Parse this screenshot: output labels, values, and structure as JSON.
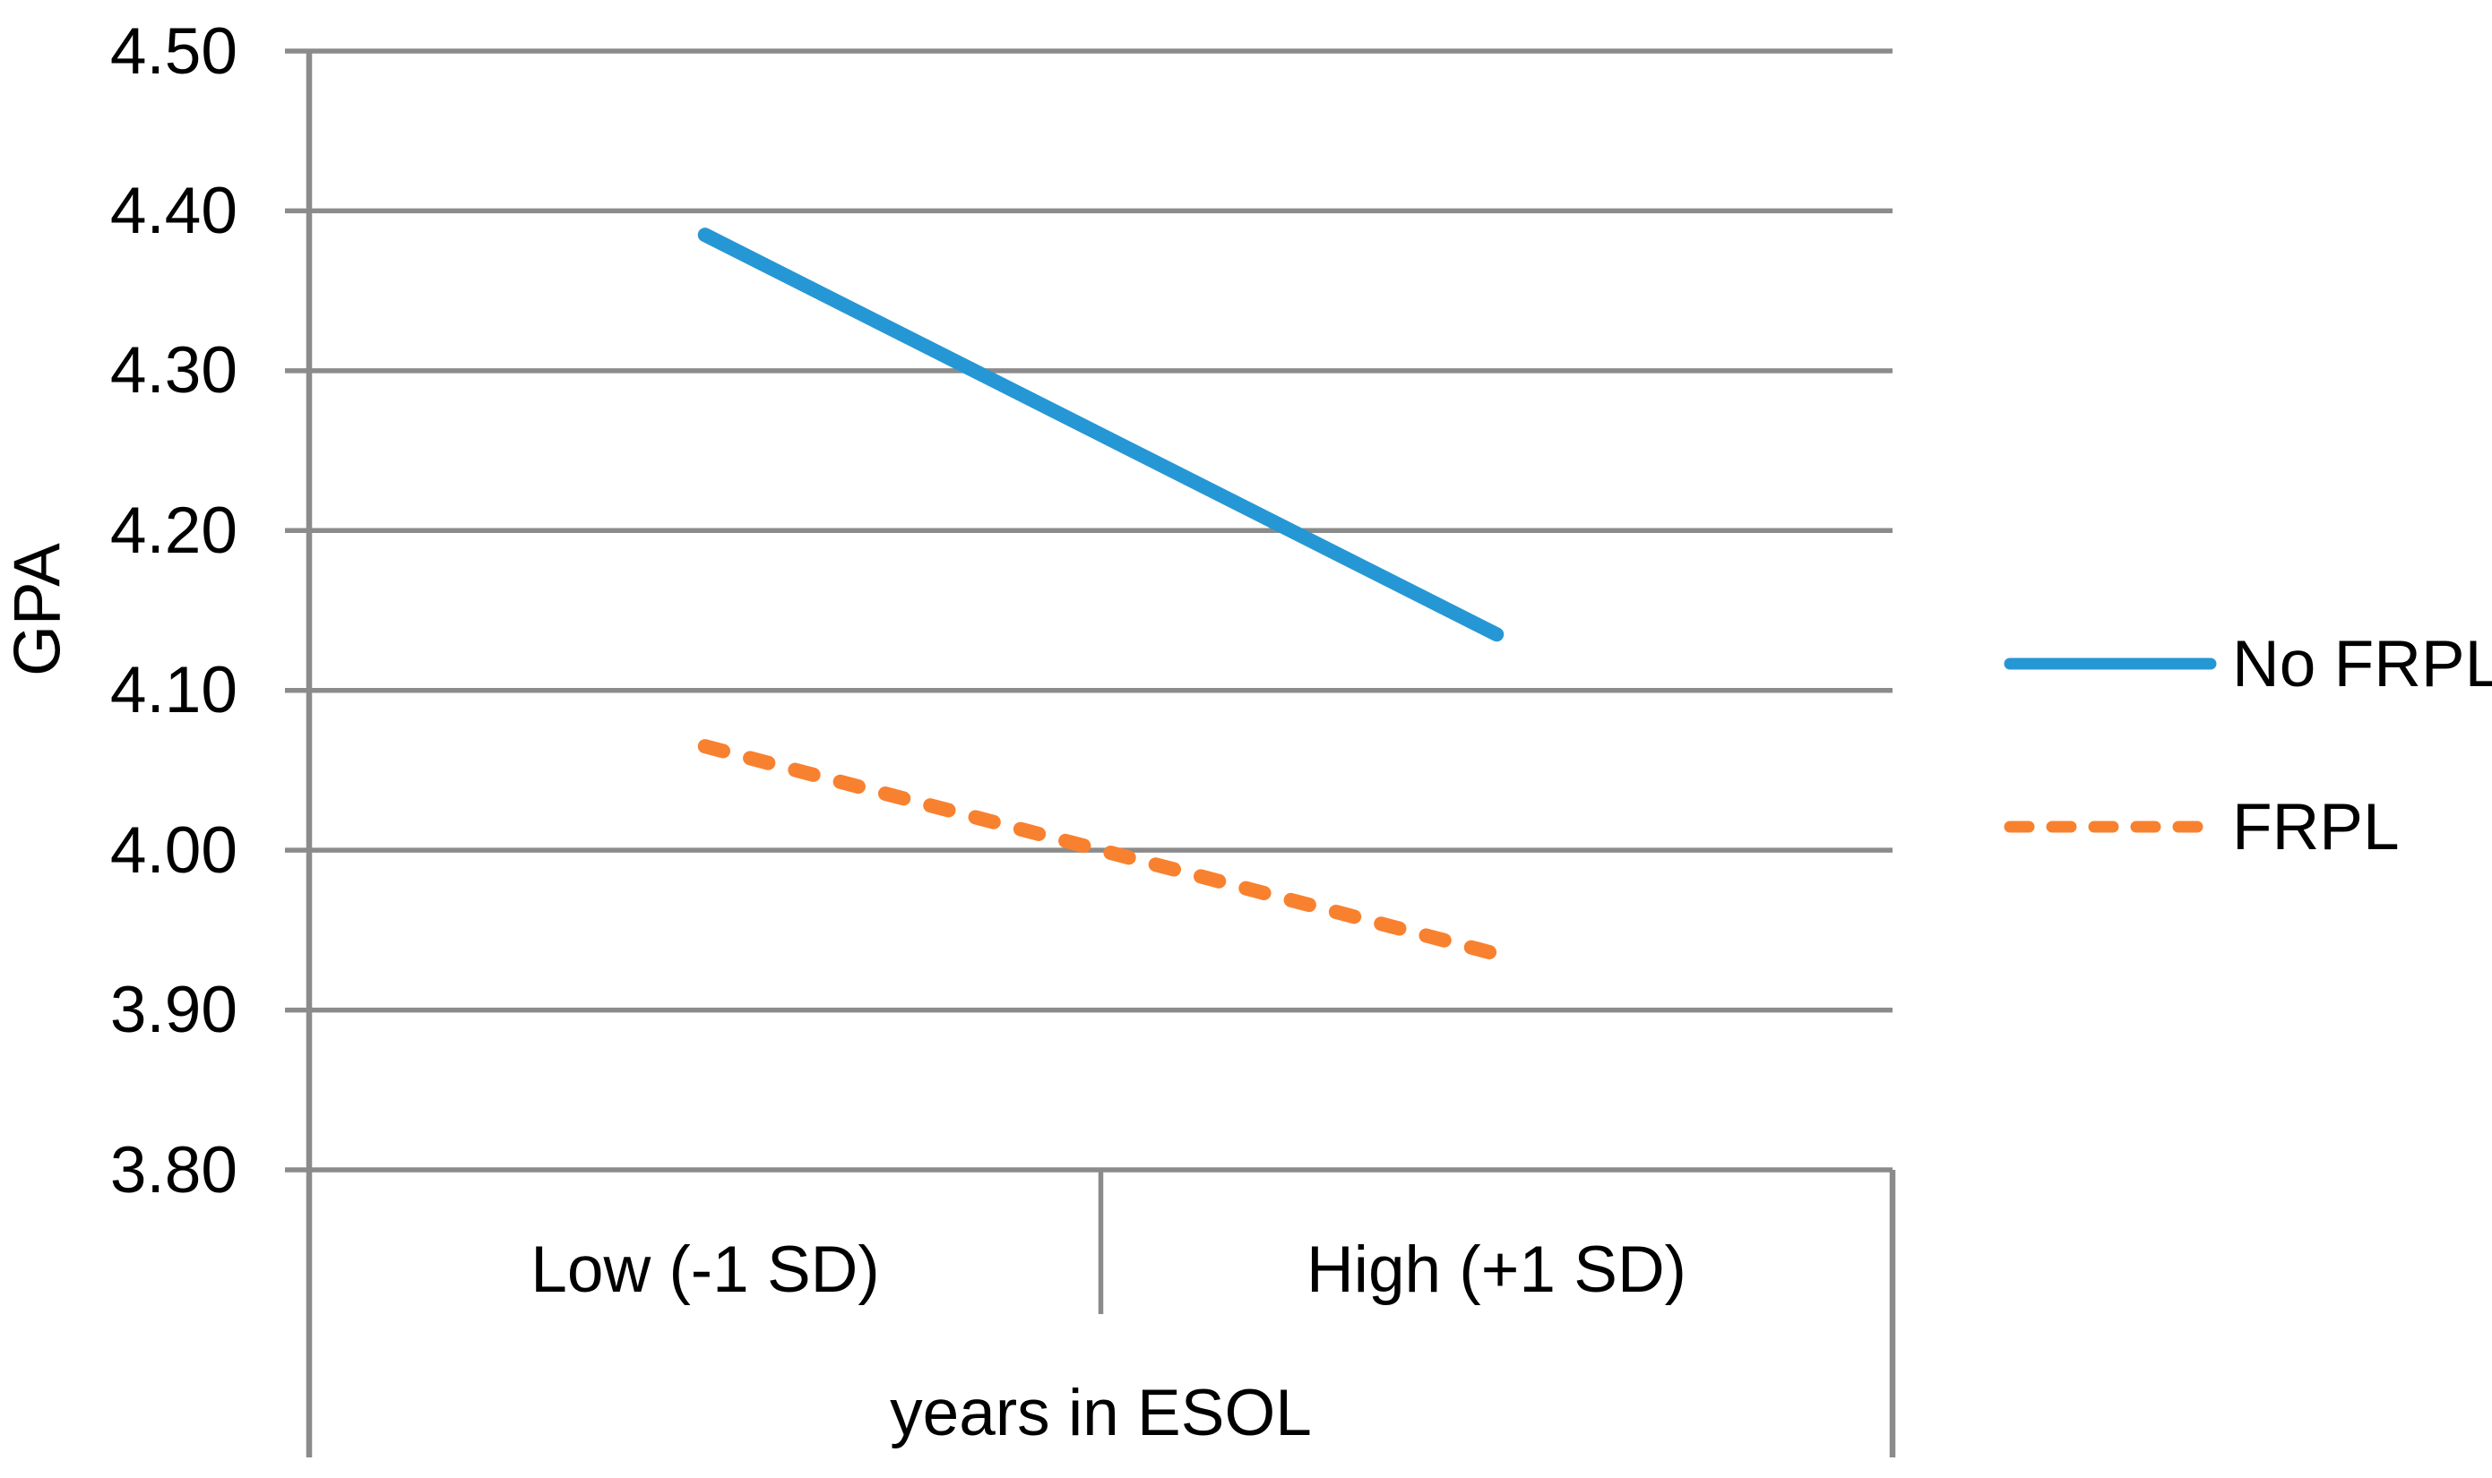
{
  "chart_data": {
    "type": "line",
    "categories": [
      "Low (-1 SD)",
      "High (+1 SD)"
    ],
    "series": [
      {
        "name": "No FRPL",
        "values": [
          4.385,
          4.135
        ],
        "color": "#2697D5",
        "style": "solid"
      },
      {
        "name": "FRPL",
        "values": [
          4.065,
          3.935
        ],
        "color": "#F8812F",
        "style": "dashed"
      }
    ],
    "xlabel": "years in ESOL",
    "ylabel": "GPA",
    "ylim": [
      3.8,
      4.5
    ],
    "ytick_step": 0.1,
    "ytick_labels": [
      "4.50",
      "4.40",
      "4.30",
      "4.20",
      "4.10",
      "4.00",
      "3.90",
      "3.80"
    ],
    "grid": "horizontal-only",
    "legend_position": "right",
    "grid_color": "#8B8B8B",
    "text_color": "#000000",
    "background_color": "#FFFFFF"
  }
}
